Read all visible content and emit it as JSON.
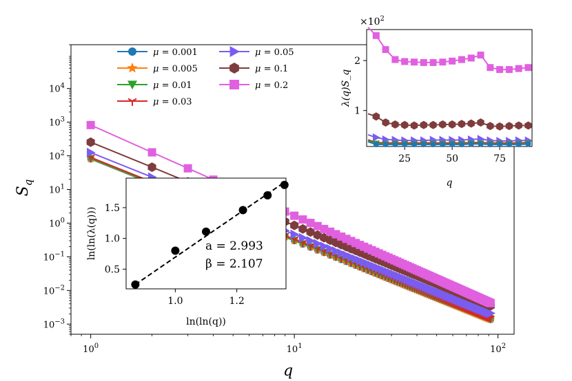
{
  "chart_data": [
    {
      "type": "line",
      "scale": "log-log",
      "xlabel": "q",
      "ylabel": "S_q",
      "xlim": [
        0.8,
        120
      ],
      "ylim": [
        0.0005,
        200000
      ],
      "xticks": [
        {
          "v": 1,
          "base": "10",
          "exp": "0"
        },
        {
          "v": 10,
          "base": "10",
          "exp": "1"
        },
        {
          "v": 100,
          "base": "10",
          "exp": "2"
        }
      ],
      "yticks": [
        {
          "v": 0.001,
          "base": "10",
          "exp": "−3"
        },
        {
          "v": 0.01,
          "base": "10",
          "exp": "−2"
        },
        {
          "v": 0.1,
          "base": "10",
          "exp": "−1"
        },
        {
          "v": 1,
          "base": "10",
          "exp": "0"
        },
        {
          "v": 10,
          "base": "10",
          "exp": "1"
        },
        {
          "v": 100,
          "base": "10",
          "exp": "2"
        },
        {
          "v": 1000,
          "base": "10",
          "exp": "3"
        },
        {
          "v": 10000,
          "base": "10",
          "exp": "4"
        }
      ],
      "x_range": [
        1,
        92
      ],
      "legend_position": "top",
      "series": [
        {
          "name": "μ = 0.001",
          "label_prefix": "μ = ",
          "label_value": "0.001",
          "color": "#1f77b4",
          "marker": "circle",
          "s1": 80,
          "s92": 0.00135
        },
        {
          "name": "μ = 0.005",
          "label_prefix": "μ = ",
          "label_value": "0.005",
          "color": "#ff7f0e",
          "marker": "star",
          "s1": 82,
          "s92": 0.00138
        },
        {
          "name": "μ = 0.01",
          "label_prefix": "μ = ",
          "label_value": "0.01",
          "color": "#2ca02c",
          "marker": "triangle-down",
          "s1": 84,
          "s92": 0.00142
        },
        {
          "name": "μ = 0.03",
          "label_prefix": "μ = ",
          "label_value": "0.03",
          "color": "#d62728",
          "marker": "tri-down",
          "s1": 90,
          "s92": 0.0015
        },
        {
          "name": "μ = 0.05",
          "label_prefix": "μ = ",
          "label_value": "0.05",
          "color": "#7b5cf0",
          "marker": "triangle-right",
          "s1": 125,
          "s92": 0.0021
        },
        {
          "name": "μ = 0.1",
          "label_prefix": "μ = ",
          "label_value": "0.1",
          "color": "#7f3c3c",
          "marker": "hexagon",
          "s1": 255,
          "s92": 0.0035
        },
        {
          "name": "μ = 0.2",
          "label_prefix": "μ = ",
          "label_value": "0.2",
          "color": "#e060e0",
          "marker": "square",
          "s1": 820,
          "s92": 0.0042
        }
      ]
    },
    {
      "type": "line",
      "name": "inset-top-right",
      "xlabel": "q",
      "ylabel": "λ(q)S_q",
      "multiplier_base": "×10",
      "multiplier_exp": "2",
      "xlim": [
        5,
        92
      ],
      "ylim": [
        0.28,
        2.62
      ],
      "xticks": [
        25,
        50,
        75
      ],
      "yticks": [
        1,
        2
      ],
      "series": [
        {
          "name": "μ = 0.2",
          "color": "#e060e0",
          "marker": "square",
          "values": [
            [
              10,
              2.5
            ],
            [
              15,
              2.22
            ],
            [
              20,
              2.02
            ],
            [
              25,
              1.98
            ],
            [
              30,
              1.97
            ],
            [
              35,
              1.96
            ],
            [
              40,
              1.96
            ],
            [
              45,
              1.97
            ],
            [
              50,
              1.99
            ],
            [
              55,
              2.02
            ],
            [
              60,
              2.05
            ],
            [
              65,
              2.11
            ],
            [
              70,
              1.86
            ],
            [
              75,
              1.82
            ],
            [
              80,
              1.82
            ],
            [
              85,
              1.84
            ],
            [
              90,
              1.86
            ]
          ]
        },
        {
          "name": "μ = 0.1",
          "color": "#7f3c3c",
          "marker": "hexagon",
          "values": [
            [
              10,
              0.88
            ],
            [
              15,
              0.76
            ],
            [
              20,
              0.72
            ],
            [
              25,
              0.71
            ],
            [
              30,
              0.7
            ],
            [
              35,
              0.71
            ],
            [
              40,
              0.71
            ],
            [
              45,
              0.72
            ],
            [
              50,
              0.72
            ],
            [
              55,
              0.73
            ],
            [
              60,
              0.74
            ],
            [
              65,
              0.76
            ],
            [
              70,
              0.69
            ],
            [
              75,
              0.68
            ],
            [
              80,
              0.69
            ],
            [
              85,
              0.7
            ],
            [
              90,
              0.7
            ]
          ]
        },
        {
          "name": "μ = 0.05",
          "color": "#7b5cf0",
          "marker": "triangle-right",
          "values": [
            [
              10,
              0.46
            ],
            [
              15,
              0.42
            ],
            [
              20,
              0.41
            ],
            [
              25,
              0.4
            ],
            [
              30,
              0.4
            ],
            [
              35,
              0.4
            ],
            [
              40,
              0.41
            ],
            [
              45,
              0.41
            ],
            [
              50,
              0.41
            ],
            [
              55,
              0.41
            ],
            [
              60,
              0.42
            ],
            [
              65,
              0.43
            ],
            [
              70,
              0.4
            ],
            [
              75,
              0.39
            ],
            [
              80,
              0.39
            ],
            [
              85,
              0.4
            ],
            [
              90,
              0.4
            ]
          ]
        },
        {
          "name": "μ = 0.03",
          "color": "#d62728",
          "marker": "tri-down",
          "values": [
            [
              10,
              0.36
            ],
            [
              15,
              0.35
            ],
            [
              20,
              0.35
            ],
            [
              25,
              0.35
            ],
            [
              30,
              0.35
            ],
            [
              35,
              0.35
            ],
            [
              40,
              0.35
            ],
            [
              45,
              0.35
            ],
            [
              50,
              0.35
            ],
            [
              55,
              0.35
            ],
            [
              60,
              0.36
            ],
            [
              65,
              0.36
            ],
            [
              70,
              0.35
            ],
            [
              75,
              0.35
            ],
            [
              80,
              0.35
            ],
            [
              85,
              0.35
            ],
            [
              90,
              0.36
            ]
          ]
        },
        {
          "name": "μ = 0.01",
          "color": "#2ca02c",
          "marker": "triangle-down",
          "values": [
            [
              10,
              0.34
            ],
            [
              15,
              0.33
            ],
            [
              20,
              0.33
            ],
            [
              25,
              0.33
            ],
            [
              30,
              0.33
            ],
            [
              35,
              0.33
            ],
            [
              40,
              0.33
            ],
            [
              45,
              0.33
            ],
            [
              50,
              0.33
            ],
            [
              55,
              0.33
            ],
            [
              60,
              0.34
            ],
            [
              65,
              0.34
            ],
            [
              70,
              0.33
            ],
            [
              75,
              0.33
            ],
            [
              80,
              0.33
            ],
            [
              85,
              0.33
            ],
            [
              90,
              0.34
            ]
          ]
        },
        {
          "name": "μ = 0.001",
          "color": "#1f77b4",
          "marker": "circle",
          "values": [
            [
              10,
              0.32
            ],
            [
              15,
              0.32
            ],
            [
              20,
              0.32
            ],
            [
              25,
              0.32
            ],
            [
              30,
              0.32
            ],
            [
              35,
              0.32
            ],
            [
              40,
              0.32
            ],
            [
              45,
              0.32
            ],
            [
              50,
              0.32
            ],
            [
              55,
              0.32
            ],
            [
              60,
              0.33
            ],
            [
              65,
              0.33
            ],
            [
              70,
              0.32
            ],
            [
              75,
              0.32
            ],
            [
              80,
              0.32
            ],
            [
              85,
              0.32
            ],
            [
              90,
              0.33
            ]
          ]
        }
      ]
    },
    {
      "type": "scatter",
      "name": "inset-bottom-left",
      "xlabel": "ln(ln(q))",
      "ylabel": "ln(ln(λ(q)))",
      "xlim": [
        0.84,
        1.36
      ],
      "ylim": [
        0.18,
        1.98
      ],
      "xticks": [
        "1.0",
        "1.2"
      ],
      "yticks": [
        "0.5",
        "1.0",
        "1.5"
      ],
      "points": [
        [
          0.87,
          0.25
        ],
        [
          1.0,
          0.8
        ],
        [
          1.1,
          1.11
        ],
        [
          1.22,
          1.46
        ],
        [
          1.3,
          1.7
        ],
        [
          1.355,
          1.87
        ]
      ],
      "fit_line": [
        [
          0.87,
          0.25
        ],
        [
          1.36,
          1.93
        ]
      ],
      "annotation_a": "a = 2.993",
      "annotation_beta": "β = 2.107"
    }
  ]
}
